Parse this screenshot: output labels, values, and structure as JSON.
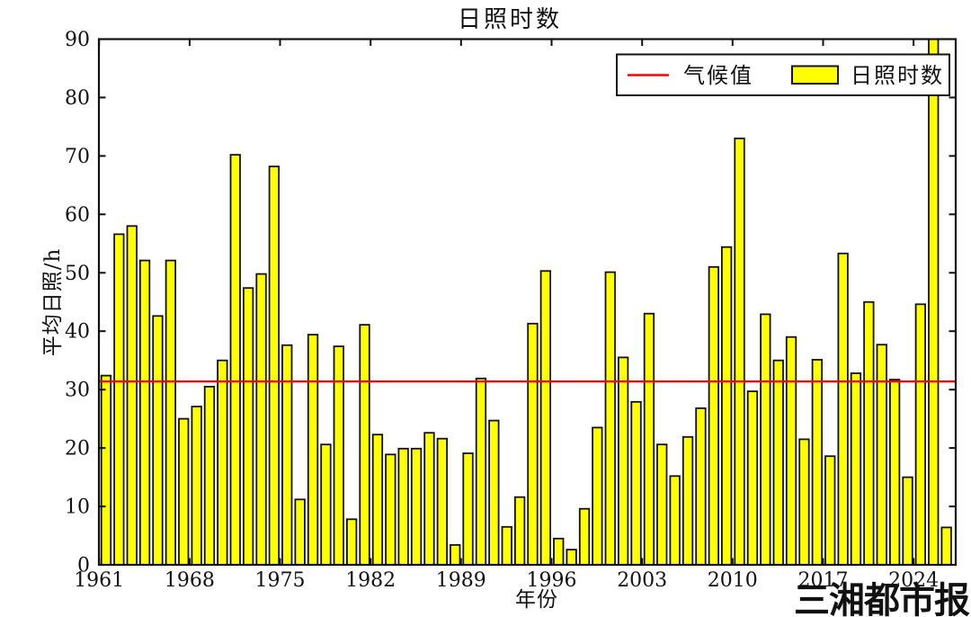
{
  "chart_data": {
    "type": "bar",
    "title": "日照时数",
    "xlabel": "年份",
    "ylabel": "平均日照/h",
    "series_name": "日照时数",
    "legend_position": "upper right",
    "grid": false,
    "ylim": [
      0,
      90
    ],
    "yticks": [
      0,
      10,
      20,
      30,
      40,
      50,
      60,
      70,
      80,
      90
    ],
    "xticks": [
      1961,
      1968,
      1975,
      1982,
      1989,
      1996,
      2003,
      2010,
      2017,
      2024
    ],
    "bar_color": "#ffff00",
    "bar_edge_color": "#111111",
    "climate_line": {
      "label": "气候值",
      "value": 31.4,
      "color": "#ff0000"
    },
    "years": [
      1961,
      1962,
      1963,
      1964,
      1965,
      1966,
      1967,
      1968,
      1969,
      1970,
      1971,
      1972,
      1973,
      1974,
      1975,
      1976,
      1977,
      1978,
      1979,
      1980,
      1981,
      1982,
      1983,
      1984,
      1985,
      1986,
      1987,
      1988,
      1989,
      1990,
      1991,
      1992,
      1993,
      1994,
      1995,
      1996,
      1997,
      1998,
      1999,
      2000,
      2001,
      2002,
      2003,
      2004,
      2005,
      2006,
      2007,
      2008,
      2009,
      2010,
      2011,
      2012,
      2013,
      2014,
      2015,
      2016,
      2017,
      2018,
      2019,
      2020,
      2021,
      2022,
      2023,
      2024,
      2025,
      2026
    ],
    "values": [
      32.4,
      56.6,
      58.0,
      52.1,
      42.6,
      52.1,
      25.0,
      27.1,
      30.5,
      35.0,
      70.2,
      47.4,
      49.8,
      68.2,
      37.6,
      11.2,
      39.4,
      20.6,
      37.4,
      7.8,
      41.1,
      22.3,
      18.9,
      19.9,
      19.9,
      22.6,
      21.6,
      3.4,
      19.1,
      31.9,
      24.7,
      6.5,
      11.6,
      41.3,
      50.3,
      4.5,
      2.6,
      9.6,
      23.5,
      50.1,
      35.5,
      27.9,
      43.0,
      20.6,
      15.2,
      21.9,
      26.8,
      51.0,
      54.4,
      73.0,
      29.7,
      42.9,
      35.0,
      39.0,
      21.5,
      35.1,
      18.6,
      53.3,
      32.8,
      45.0,
      37.7,
      31.7,
      15.0,
      44.6,
      90.0,
      6.4
    ]
  },
  "legend": {
    "climate_label": "气候值",
    "series_label": "日照时数"
  },
  "watermark": {
    "text": "三湘都市报",
    "color": "#d93a30"
  }
}
